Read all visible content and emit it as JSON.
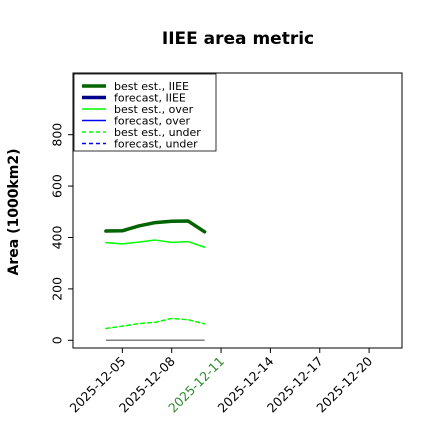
{
  "chart_data": {
    "type": "line",
    "title": "IIEE area metric",
    "xlabel": "",
    "ylabel": "Area (1000km2)",
    "x_ticks": [
      "2025-12-05",
      "2025-12-08",
      "2025-12-11",
      "2025-12-14",
      "2025-12-17",
      "2025-12-20"
    ],
    "highlight_tick": "2025-12-11",
    "highlight_color": "#2e8b2e",
    "xlim": [
      "2025-12-02",
      "2025-12-22"
    ],
    "ylim": [
      -30,
      1040
    ],
    "y_ticks": [
      0,
      200,
      400,
      600,
      800
    ],
    "grid": false,
    "legend_position": "top-left",
    "zero_line_color": "#808080",
    "series": [
      {
        "name": "best est., IIEE",
        "color": "#006400",
        "style": "solid",
        "width": "thick",
        "x": [
          "2025-12-04",
          "2025-12-05",
          "2025-12-06",
          "2025-12-07",
          "2025-12-08",
          "2025-12-09",
          "2025-12-10"
        ],
        "values": [
          425,
          426,
          445,
          458,
          463,
          464,
          422
        ]
      },
      {
        "name": "forecast, IIEE",
        "color": "#00008b",
        "style": "solid",
        "width": "thick",
        "x": [],
        "values": []
      },
      {
        "name": "best est., over",
        "color": "#00ff00",
        "style": "solid",
        "width": "thin",
        "x": [
          "2025-12-04",
          "2025-12-05",
          "2025-12-06",
          "2025-12-07",
          "2025-12-08",
          "2025-12-09",
          "2025-12-10"
        ],
        "values": [
          380,
          375,
          382,
          390,
          381,
          384,
          362
        ]
      },
      {
        "name": "forecast, over",
        "color": "#0000ff",
        "style": "solid",
        "width": "thin",
        "x": [],
        "values": []
      },
      {
        "name": "best est., under",
        "color": "#00ff00",
        "style": "dashed",
        "width": "thin",
        "x": [
          "2025-12-04",
          "2025-12-05",
          "2025-12-06",
          "2025-12-07",
          "2025-12-08",
          "2025-12-09",
          "2025-12-10"
        ],
        "values": [
          46,
          55,
          65,
          70,
          85,
          80,
          64
        ]
      },
      {
        "name": "forecast, under",
        "color": "#0000ff",
        "style": "dashed",
        "width": "thin",
        "x": [],
        "values": []
      }
    ],
    "zero_line": {
      "x": [
        "2025-12-04",
        "2025-12-10"
      ],
      "values": [
        0,
        0
      ]
    }
  }
}
